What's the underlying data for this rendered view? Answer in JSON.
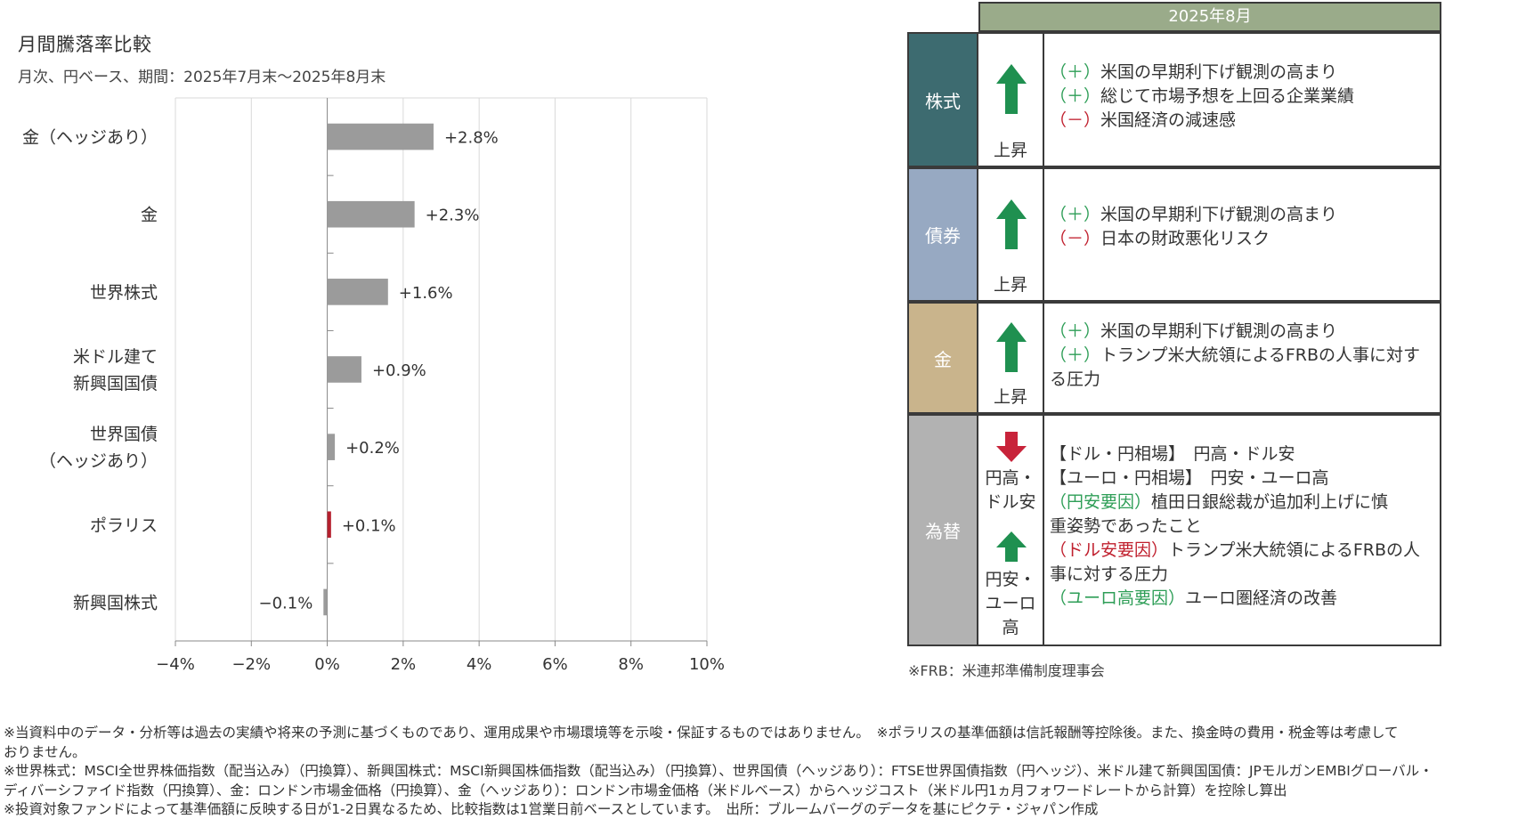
{
  "chart_data": {
    "type": "bar",
    "orientation": "horizontal",
    "title": "月間騰落率比較",
    "subtitle": "月次、円ベース、期間：2025年7月末～2025年8月末",
    "categories": [
      [
        "金（ヘッジあり）"
      ],
      [
        "金"
      ],
      [
        "世界株式"
      ],
      [
        "米ドル建て",
        "新興国国債"
      ],
      [
        "世界国債",
        "（ヘッジあり）"
      ],
      [
        "ポラリス"
      ],
      [
        "新興国株式"
      ]
    ],
    "values": [
      2.8,
      2.3,
      1.6,
      0.9,
      0.2,
      0.1,
      -0.1
    ],
    "value_labels": [
      "+2.8%",
      "+2.3%",
      "+1.6%",
      "+0.9%",
      "+0.2%",
      "+0.1%",
      "−0.1%"
    ],
    "highlight_index": 5,
    "xlim": [
      -4,
      10
    ],
    "xticks": [
      -4,
      -2,
      0,
      2,
      4,
      6,
      8,
      10
    ],
    "xtick_labels": [
      "−4%",
      "−2%",
      "0%",
      "2%",
      "4%",
      "6%",
      "8%",
      "10%"
    ],
    "grid": true,
    "colors": {
      "bar": "#9b9b9b",
      "highlight_bar": "#b5202e",
      "highlight_label": "#b5202e",
      "grid": "#d9d9d9"
    }
  },
  "table": {
    "header": "2025年8月",
    "rows": [
      {
        "category": "株式",
        "color": "#3d6b70",
        "directions": [
          {
            "arrow": "up",
            "label": "上昇"
          }
        ],
        "reasons": [
          [
            {
              "t": "（＋）",
              "c": "plus"
            },
            {
              "t": "米国の早期利下げ観測の高まり"
            }
          ],
          [
            {
              "t": "（＋）",
              "c": "plus"
            },
            {
              "t": "総じて市場予想を上回る企業業績"
            }
          ],
          [
            {
              "t": "（－）",
              "c": "minus"
            },
            {
              "t": "米国経済の減速感"
            }
          ]
        ]
      },
      {
        "category": "債券",
        "color": "#97a9c2",
        "directions": [
          {
            "arrow": "up",
            "label": "上昇"
          }
        ],
        "reasons": [
          [
            {
              "t": "（＋）",
              "c": "plus"
            },
            {
              "t": "米国の早期利下げ観測の高まり"
            }
          ],
          [
            {
              "t": "（－）",
              "c": "minus"
            },
            {
              "t": "日本の財政悪化リスク"
            }
          ]
        ]
      },
      {
        "category": "金",
        "color": "#c9b48c",
        "directions": [
          {
            "arrow": "up",
            "label": "上昇"
          }
        ],
        "reasons": [
          [
            {
              "t": "（＋）",
              "c": "plus"
            },
            {
              "t": "米国の早期利下げ観測の高まり"
            }
          ],
          [
            {
              "t": "（＋）",
              "c": "plus"
            },
            {
              "t": "トランプ米大統領によるFRBの人事に対す"
            }
          ],
          [
            {
              "t": "る圧力"
            }
          ]
        ]
      },
      {
        "category": "為替",
        "color": "#b2b2b2",
        "directions": [
          {
            "arrow": "down",
            "label_lines": [
              "円高・",
              "ドル安"
            ]
          },
          {
            "arrow": "up",
            "label_lines": [
              "円安・",
              "ユーロ",
              "高"
            ]
          }
        ],
        "reasons": [
          [
            {
              "t": "【ドル・円相場】　円高・ドル安"
            }
          ],
          [
            {
              "t": "【ユーロ・円相場】　円安・ユーロ高"
            }
          ],
          [
            {
              "t": "（円安要因）",
              "c": "plus"
            },
            {
              "t": "植田日銀総裁が追加利上げに慎"
            }
          ],
          [
            {
              "t": "重姿勢であったこと"
            }
          ],
          [
            {
              "t": "（ドル安要因）",
              "c": "minus"
            },
            {
              "t": "トランプ米大統領によるFRBの人"
            }
          ],
          [
            {
              "t": "事に対する圧力"
            }
          ],
          [
            {
              "t": "（ユーロ高要因）",
              "c": "plus"
            },
            {
              "t": "ユーロ圏経済の改善"
            }
          ]
        ]
      }
    ],
    "colors": {
      "header": "#9aab8a",
      "up_arrow": "#1f9050",
      "down_arrow": "#c8233a"
    }
  },
  "note_frb": "※FRB：米連邦準備制度理事会",
  "footnotes": [
    "※当資料中のデータ・分析等は過去の実績や将来の予測に基づくものであり、運用成果や市場環境等を示唆・保証するものではありません。　※ポラリスの基準価額は信託報酬等控除後。また、換金時の費用・税金等は考慮して",
    "おりません。",
    "※世界株式：MSCI全世界株価指数（配当込み）（円換算）、新興国株式：MSCI新興国株価指数（配当込み）（円換算）、世界国債（ヘッジあり）：FTSE世界国債指数（円ヘッジ）、米ドル建て新興国国債：JPモルガンEMBIグローバル・",
    "ディバーシファイド指数（円換算）、金：ロンドン市場金価格（円換算）、金（ヘッジあり）：ロンドン市場金価格（米ドルベース）からヘッジコスト（米ドル円1ヵ月フォワードレートから計算）を控除し算出",
    "※投資対象ファンドによって基準価額に反映する日が1-2日異なるため、比較指数は1営業日前ベースとしています。　出所：ブルームバーグのデータを基にピクテ・ジャパン作成"
  ]
}
